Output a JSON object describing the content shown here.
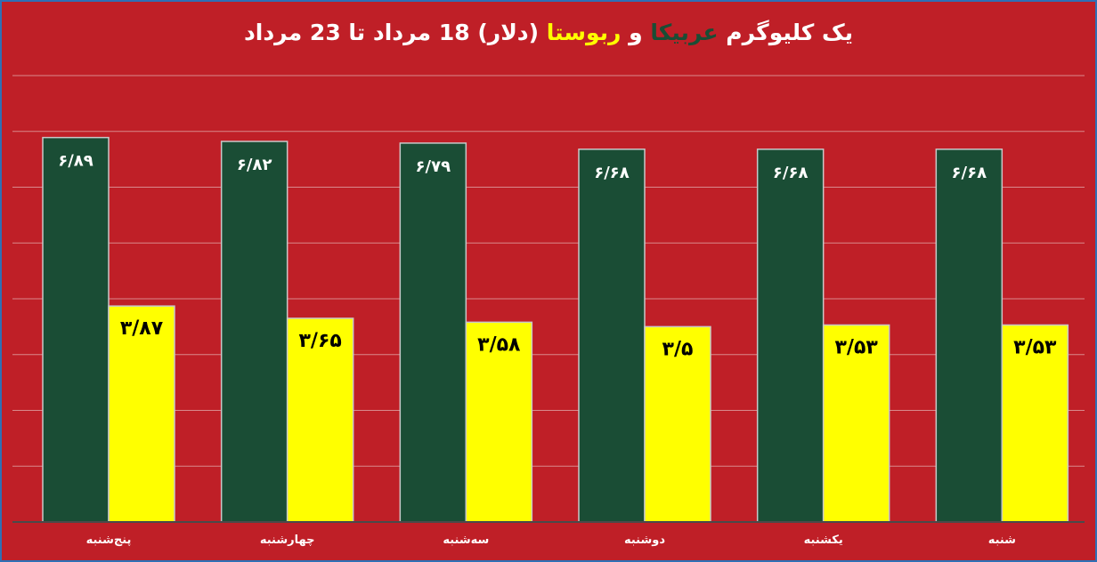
{
  "title": {
    "part1": "یک کلیوگرم",
    "arabica": "عربیکا",
    "and": "و",
    "robusta": "ربوستا",
    "part2": "(دلار) 18 مرداد تا 23 مرداد"
  },
  "colors": {
    "background": "#bf1f27",
    "border": "#2f6fb5",
    "arabica": "#1a4d35",
    "robusta": "#ffff00",
    "gridline": "#d9898c",
    "axis": "#4a4a4a"
  },
  "chart_data": {
    "type": "bar",
    "categories": [
      "پنج‌شنبه",
      "چهارشنبه",
      "سه‌شنبه",
      "دوشنبه",
      "یکشنبه",
      "شنبه"
    ],
    "series": [
      {
        "values": [
          6.89,
          6.82,
          6.79,
          6.68,
          6.68,
          6.68
        ],
        "labels": [
          "۶/۸۹",
          "۶/۸۲",
          "۶/۷۹",
          "۶/۶۸",
          "۶/۶۸",
          "۶/۶۸"
        ],
        "color": "#1a4d35"
      },
      {
        "values": [
          3.87,
          3.65,
          3.58,
          3.5,
          3.53,
          3.53
        ],
        "labels": [
          "۳/۸۷",
          "۳/۶۵",
          "۳/۵۸",
          "۳/۵",
          "۳/۵۳",
          "۳/۵۳"
        ],
        "color": "#ffff00"
      }
    ],
    "ylim": [
      0,
      8
    ],
    "grid": true
  }
}
